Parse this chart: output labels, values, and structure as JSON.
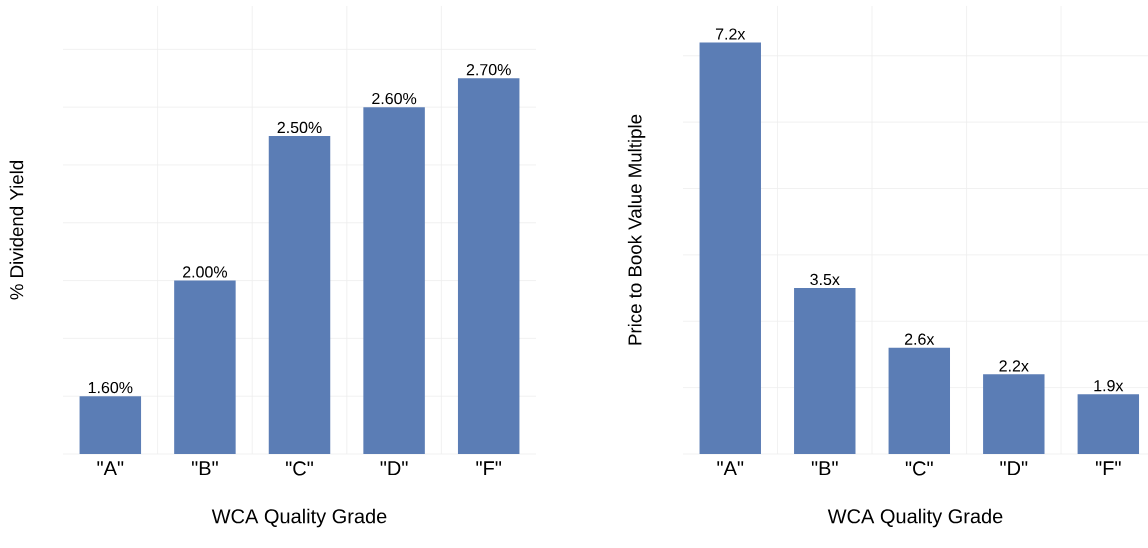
{
  "chart_data": [
    {
      "type": "bar",
      "xlabel": "WCA Quality Grade",
      "ylabel": "% Dividend Yield",
      "categories": [
        "\"A\"",
        "\"B\"",
        "\"C\"",
        "\"D\"",
        "\"F\""
      ],
      "values": [
        1.6,
        2.0,
        2.5,
        2.6,
        2.7
      ],
      "value_labels": [
        "1.60%",
        "2.00%",
        "2.50%",
        "2.60%",
        "2.70%"
      ],
      "color": "#5b7db5",
      "ylim": [
        1.4,
        2.95
      ],
      "yticks": [
        {
          "value": 1.4,
          "label": null
        },
        {
          "value": 1.6,
          "label": null
        },
        {
          "value": 1.8,
          "label": null
        },
        {
          "value": 2.0,
          "label": null
        },
        {
          "value": 2.2,
          "label": null
        },
        {
          "value": 2.4,
          "label": null
        },
        {
          "value": 2.6,
          "label": null
        },
        {
          "value": 2.8,
          "label": null
        }
      ],
      "grid": true,
      "tick_labels": "x"
    },
    {
      "type": "bar",
      "xlabel": "WCA Quality Grade",
      "ylabel": "Price to Book Value Multiple",
      "categories": [
        "\"A\"",
        "\"B\"",
        "\"C\"",
        "\"D\"",
        "\"F\""
      ],
      "values": [
        7.2,
        3.5,
        2.6,
        2.2,
        1.9
      ],
      "value_labels": [
        "7.2x",
        "3.5x",
        "2.6x",
        "2.2x",
        "1.9x"
      ],
      "color": "#5b7db5",
      "ylim": [
        1,
        7.75
      ],
      "yticks": [
        {
          "value": 1,
          "label": null
        },
        {
          "value": 2,
          "label": null
        },
        {
          "value": 3,
          "label": null
        },
        {
          "value": 4,
          "label": null
        },
        {
          "value": 5,
          "label": null
        },
        {
          "value": 6,
          "label": null
        },
        {
          "value": 7,
          "label": null
        }
      ],
      "grid": true,
      "tick_labels": "x"
    }
  ]
}
